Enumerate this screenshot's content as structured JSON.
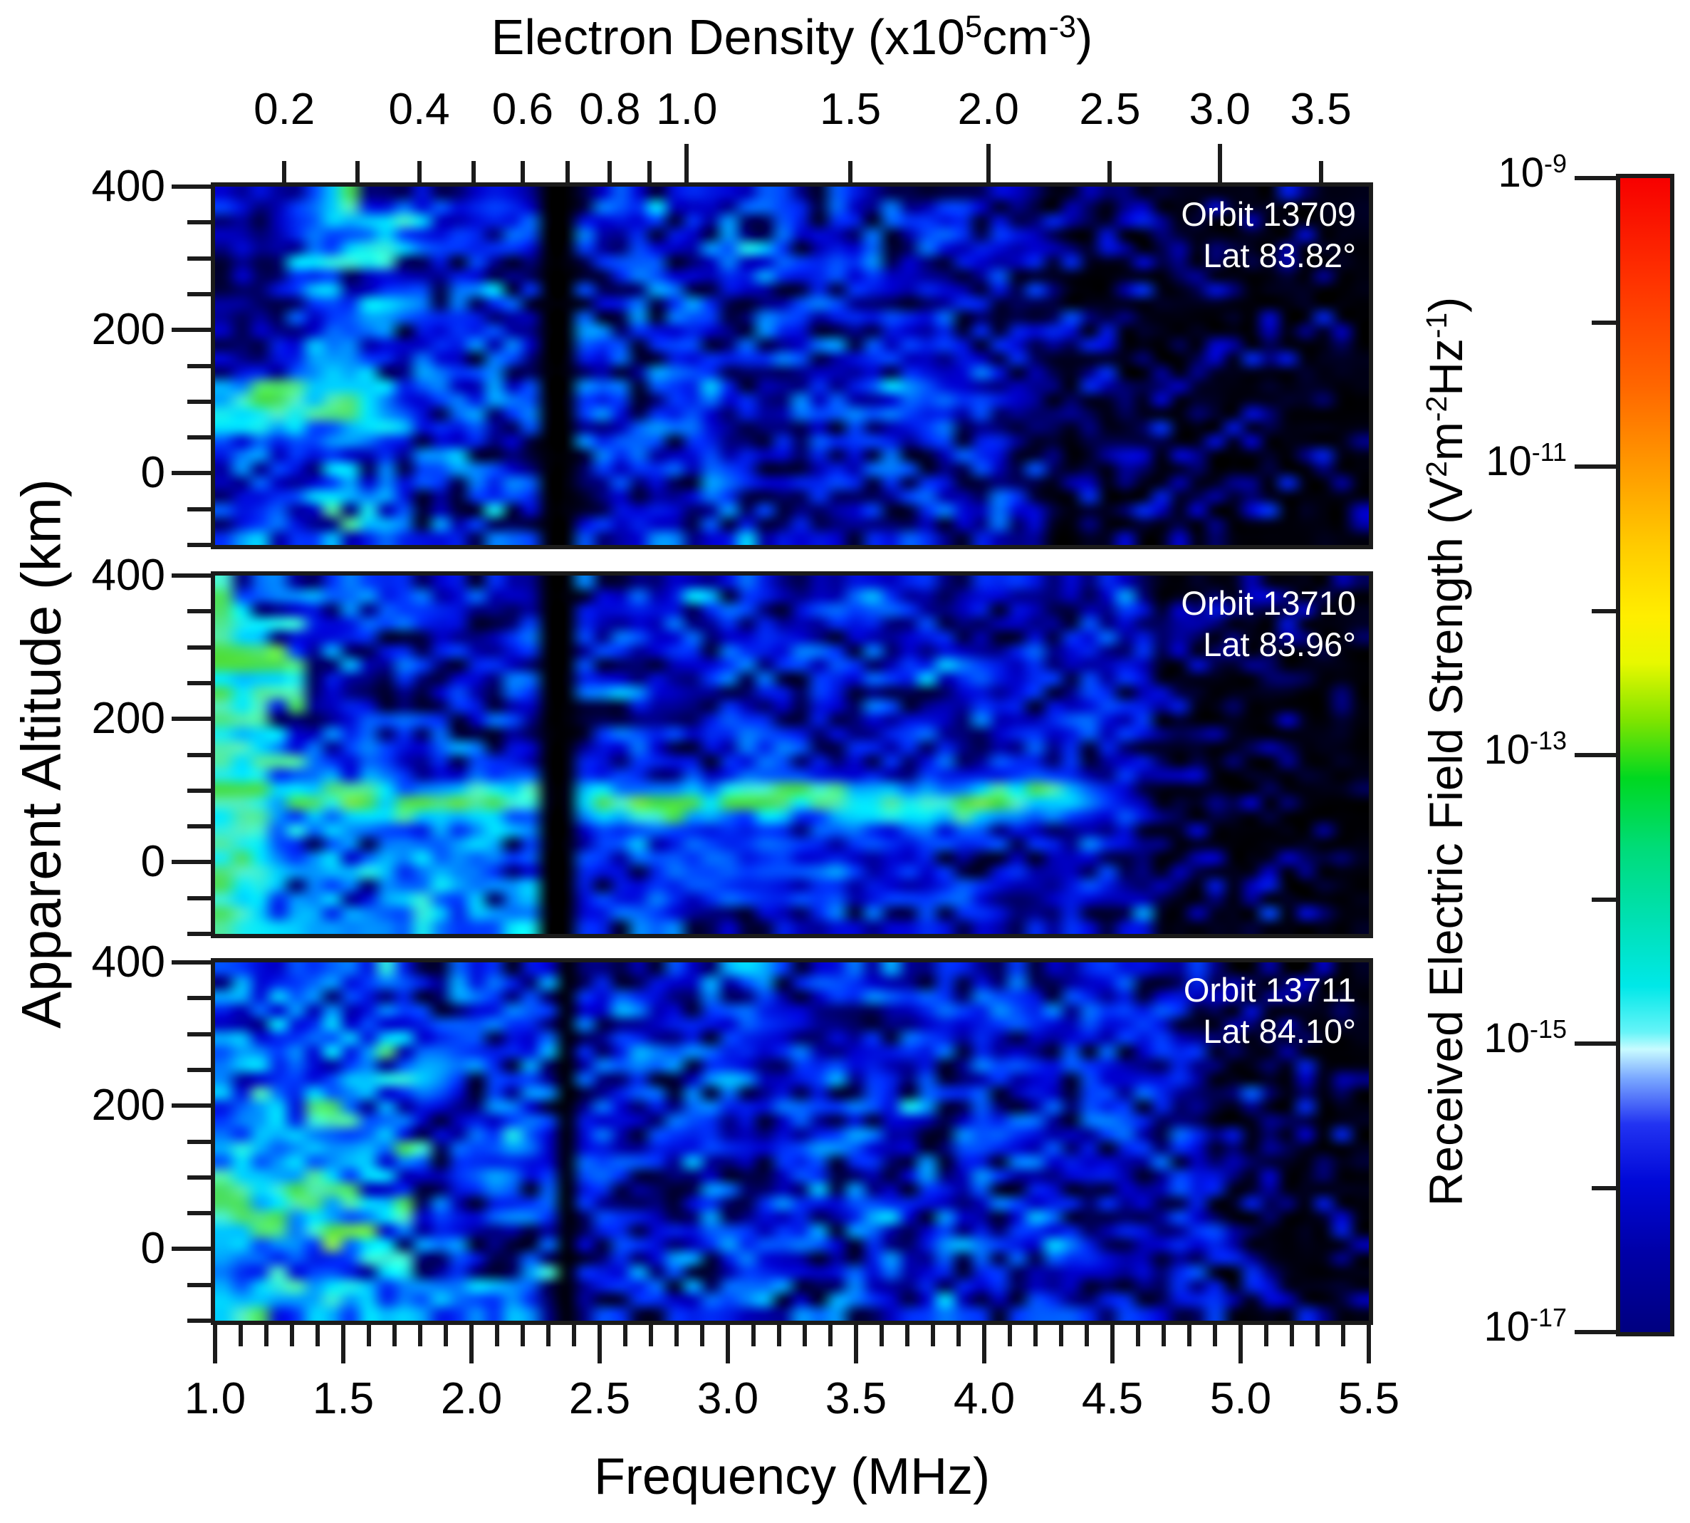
{
  "chart_data": {
    "type": "heatmap",
    "description": "Three stacked sounder spectrogram panels of received electric field strength vs frequency and apparent altitude for three polar orbits",
    "style": {
      "background": "#ffffff",
      "axis_color": "#1b1b1b",
      "text_color": "#000000",
      "panel_label_color": "#ffffff",
      "panel_background": "#000000"
    },
    "x_axis": {
      "label": "Frequency (MHz)",
      "range": [
        1.0,
        5.5
      ],
      "major_ticks": [
        "1.0",
        "1.5",
        "2.0",
        "2.5",
        "3.0",
        "3.5",
        "4.0",
        "4.5",
        "5.0",
        "5.5"
      ],
      "major_tick_values": [
        1.0,
        1.5,
        2.0,
        2.5,
        3.0,
        3.5,
        4.0,
        4.5,
        5.0,
        5.5
      ],
      "minor_tick_step": 0.1
    },
    "top_axis": {
      "title_parts": [
        [
          "Electron Density (x10",
          ""
        ],
        [
          "5",
          "sup"
        ],
        [
          "cm",
          ""
        ],
        [
          "-3",
          "sup"
        ],
        [
          ")",
          ""
        ]
      ],
      "ticks": [
        {
          "value": 0.2,
          "label": "0.2"
        },
        {
          "value": 0.3,
          "label": ""
        },
        {
          "value": 0.4,
          "label": "0.4"
        },
        {
          "value": 0.5,
          "label": ""
        },
        {
          "value": 0.6,
          "label": "0.6"
        },
        {
          "value": 0.7,
          "label": ""
        },
        {
          "value": 0.8,
          "label": "0.8"
        },
        {
          "value": 0.9,
          "label": ""
        },
        {
          "value": 1.0,
          "label": "1.0"
        },
        {
          "value": 1.5,
          "label": "1.5"
        },
        {
          "value": 2.0,
          "label": "2.0"
        },
        {
          "value": 2.5,
          "label": "2.5"
        },
        {
          "value": 3.0,
          "label": "3.0"
        },
        {
          "value": 3.5,
          "label": "3.5"
        }
      ],
      "long_tick_values": [
        1.0,
        2.0,
        3.0
      ]
    },
    "y_axis": {
      "label": "Apparent Altitude (km)",
      "range": [
        -100,
        400
      ],
      "major_ticks": [
        "400",
        "200",
        "0"
      ],
      "major_tick_values": [
        400,
        200,
        0
      ],
      "minor_tick_step": 50
    },
    "colorbar": {
      "title_parts": [
        [
          "Received Electric Field Strength (V",
          ""
        ],
        [
          "2",
          "sup"
        ],
        [
          "m",
          ""
        ],
        [
          "-2",
          "sup"
        ],
        [
          "Hz",
          ""
        ],
        [
          "-1",
          "sup"
        ],
        [
          ")",
          ""
        ]
      ],
      "tick_exponents_major": [
        -9,
        -11,
        -13,
        -15,
        -17
      ],
      "tick_exponents_minor": [
        -10,
        -12,
        -14,
        -16
      ],
      "gradient_stops": [
        [
          0.0,
          "#f70000"
        ],
        [
          0.09,
          "#ff3300"
        ],
        [
          0.18,
          "#ff6600"
        ],
        [
          0.25,
          "#ff9900"
        ],
        [
          0.32,
          "#ffcc00"
        ],
        [
          0.38,
          "#ffee00"
        ],
        [
          0.42,
          "#e8f800"
        ],
        [
          0.47,
          "#7fe400"
        ],
        [
          0.52,
          "#00d820"
        ],
        [
          0.58,
          "#00dc78"
        ],
        [
          0.64,
          "#00e0b0"
        ],
        [
          0.7,
          "#00e8e8"
        ],
        [
          0.74,
          "#66f4f8"
        ],
        [
          0.755,
          "#c8fbff"
        ],
        [
          0.78,
          "#7aa8ff"
        ],
        [
          0.82,
          "#2233f2"
        ],
        [
          0.87,
          "#0008d8"
        ],
        [
          0.93,
          "#0000a8"
        ],
        [
          1.0,
          "#000080"
        ]
      ]
    },
    "panel_colormap_stops": [
      [
        0.0,
        "#000000"
      ],
      [
        0.16,
        "#000066"
      ],
      [
        0.3,
        "#0000d0"
      ],
      [
        0.44,
        "#0038ff"
      ],
      [
        0.56,
        "#0080ff"
      ],
      [
        0.66,
        "#00c0ff"
      ],
      [
        0.74,
        "#00e8ff"
      ],
      [
        0.8,
        "#50f0c8"
      ],
      [
        0.87,
        "#4ce06a"
      ],
      [
        0.94,
        "#44dd44"
      ],
      [
        1.0,
        "#90ee50"
      ]
    ],
    "panels": [
      {
        "orbit_label": "Orbit 13709",
        "lat_label": "Lat 83.82°",
        "seed": 1371,
        "features": {
          "base_level": 0.56,
          "enhanced_left": {
            "f_range": [
              1.0,
              1.7
            ],
            "boost": 0.16
          },
          "echo_patch": {
            "f_range": [
              1.0,
              1.62
            ],
            "alt_center_km": 100,
            "alt_sigma_km": 48,
            "peak": 0.86
          },
          "dark_region": {
            "f_range": [
              1.02,
              1.25
            ],
            "alt_range_km": [
              140,
              400
            ],
            "suppress": 0.7
          },
          "cutoff_band_f": [
            2.3,
            2.4
          ],
          "fade_start_f": 3.0,
          "sparse_start_f": 4.2
        }
      },
      {
        "orbit_label": "Orbit 13710",
        "lat_label": "Lat 83.96°",
        "seed": 2372,
        "features": {
          "base_level": 0.52,
          "enhanced_left": {
            "f_range": [
              1.0,
              1.6
            ],
            "boost": 0.12
          },
          "plasma_lines": [
            {
              "f_range": [
                1.0,
                1.07
              ],
              "alt_range_km": [
                -100,
                400
              ],
              "peak": 0.9
            },
            {
              "f_range": [
                1.1,
                1.18
              ],
              "alt_range_km": [
                -100,
                340
              ],
              "peak": 0.78
            }
          ],
          "echo_trace": {
            "f_range": [
              1.08,
              4.62
            ],
            "alt_center_km": 85,
            "alt_sigma_km": 26,
            "peak": 0.9
          },
          "diffuse_below_trace": [
            {
              "f_range": [
                1.05,
                2.3
              ],
              "alt_range_km": [
                -100,
                70
              ],
              "level": 0.6
            },
            {
              "f_range": [
                2.4,
                3.95
              ],
              "alt_range_km": [
                -70,
                55
              ],
              "level": 0.38
            }
          ],
          "cutoff_band_f": [
            2.3,
            2.4
          ],
          "fade_start_f": 3.2,
          "sparse_start_f": 4.68
        }
      },
      {
        "orbit_label": "Orbit 13711",
        "lat_label": "Lat 84.10°",
        "seed": 3373,
        "features": {
          "base_level": 0.58,
          "enhanced_left": {
            "f_range": [
              1.0,
              1.8
            ],
            "boost": 0.2
          },
          "echo_patch": {
            "f_range": [
              1.0,
              1.52
            ],
            "alt_center_km": 70,
            "alt_sigma_km": 85,
            "peak": 0.82
          },
          "bottom_band": {
            "f_range": [
              1.0,
              2.3
            ],
            "alt_range_km": [
              -100,
              -35
            ],
            "level": 0.55
          },
          "cutoff_band_f": [
            2.31,
            2.4
          ],
          "fade_start_f": 3.5,
          "sparse_start_f": 4.85
        }
      }
    ]
  }
}
